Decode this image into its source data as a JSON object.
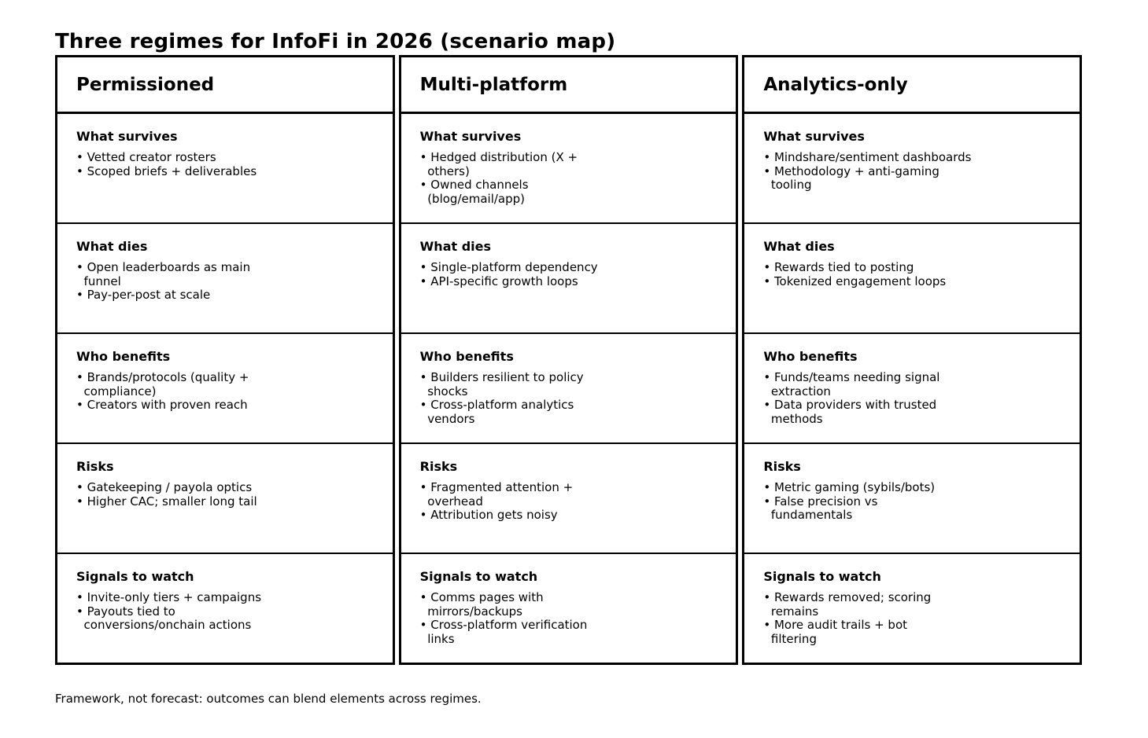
{
  "title": "Three regimes for InfoFi in 2026 (scenario map)",
  "footnote": "Framework, not forecast: outcomes can blend elements across regimes.",
  "colors": {
    "background": "#ffffff",
    "border": "#000000",
    "text": "#000000"
  },
  "columns": [
    {
      "header": "Permissioned",
      "sections": [
        {
          "title": "What survives",
          "bullets": [
            "• Vetted creator rosters",
            "• Scoped briefs + deliverables"
          ]
        },
        {
          "title": "What dies",
          "bullets": [
            "• Open leaderboards as main\n  funnel",
            "• Pay-per-post at scale"
          ]
        },
        {
          "title": "Who benefits",
          "bullets": [
            "• Brands/protocols (quality +\n  compliance)",
            "• Creators with proven reach"
          ]
        },
        {
          "title": "Risks",
          "bullets": [
            "• Gatekeeping / payola optics",
            "• Higher CAC; smaller long tail"
          ]
        },
        {
          "title": "Signals to watch",
          "bullets": [
            "• Invite-only tiers + campaigns",
            "• Payouts tied to\n  conversions/onchain actions"
          ]
        }
      ]
    },
    {
      "header": "Multi-platform",
      "sections": [
        {
          "title": "What survives",
          "bullets": [
            "• Hedged distribution (X +\n  others)",
            "• Owned channels\n  (blog/email/app)"
          ]
        },
        {
          "title": "What dies",
          "bullets": [
            "• Single-platform dependency",
            "• API-specific growth loops"
          ]
        },
        {
          "title": "Who benefits",
          "bullets": [
            "• Builders resilient to policy\n  shocks",
            "• Cross-platform analytics\n  vendors"
          ]
        },
        {
          "title": "Risks",
          "bullets": [
            "• Fragmented attention +\n  overhead",
            "• Attribution gets noisy"
          ]
        },
        {
          "title": "Signals to watch",
          "bullets": [
            "• Comms pages with\n  mirrors/backups",
            "• Cross-platform verification\n  links"
          ]
        }
      ]
    },
    {
      "header": "Analytics-only",
      "sections": [
        {
          "title": "What survives",
          "bullets": [
            "• Mindshare/sentiment dashboards",
            "• Methodology + anti-gaming\n  tooling"
          ]
        },
        {
          "title": "What dies",
          "bullets": [
            "• Rewards tied to posting",
            "• Tokenized engagement loops"
          ]
        },
        {
          "title": "Who benefits",
          "bullets": [
            "• Funds/teams needing signal\n  extraction",
            "• Data providers with trusted\n  methods"
          ]
        },
        {
          "title": "Risks",
          "bullets": [
            "• Metric gaming (sybils/bots)",
            "• False precision vs\n  fundamentals"
          ]
        },
        {
          "title": "Signals to watch",
          "bullets": [
            "• Rewards removed; scoring\n  remains",
            "• More audit trails + bot\n  filtering"
          ]
        }
      ]
    }
  ]
}
